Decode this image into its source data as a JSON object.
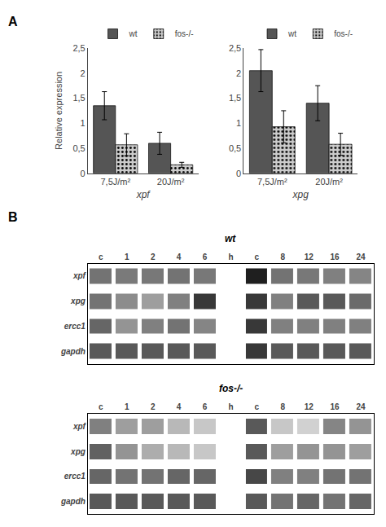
{
  "chart_data": [
    {
      "type": "bar",
      "annotations": [
        "A"
      ],
      "categories": [
        "7,5J/m²",
        "20J/m²"
      ],
      "xlabel": "xpf",
      "ylabel": "Relative expression",
      "series": [
        {
          "name": "wt",
          "color": "#555555",
          "values": [
            1.35,
            0.6
          ],
          "errors": [
            0.28,
            0.22
          ]
        },
        {
          "name": "fos-/-",
          "color": "#cccccc",
          "marker": "dots",
          "values": [
            0.57,
            0.17
          ],
          "errors": [
            0.22,
            0.05
          ]
        }
      ],
      "ylim": [
        0,
        2.5
      ],
      "yticks": [
        0,
        {
          "value": 0.5,
          "label": "0,5"
        },
        1,
        {
          "value": 1.5,
          "label": "1,5"
        },
        2,
        {
          "value": 2.5,
          "label": "2,5"
        }
      ],
      "grid": false,
      "legend": "upper right"
    },
    {
      "type": "bar",
      "categories": [
        "7,5J/m²",
        "20J/m²"
      ],
      "xlabel": "xpg",
      "series": [
        {
          "name": "wt",
          "color": "#555555",
          "values": [
            2.05,
            1.4
          ],
          "errors": [
            0.42,
            0.35
          ]
        },
        {
          "name": "fos-/-",
          "color": "#cccccc",
          "marker": "dots",
          "values": [
            0.93,
            0.58
          ],
          "errors": [
            0.32,
            0.22
          ]
        }
      ],
      "ylim": [
        0,
        2.5
      ],
      "yticks": [
        0,
        {
          "value": 0.5,
          "label": "0,5"
        },
        1,
        {
          "value": 1.5,
          "label": "1,5"
        },
        2,
        {
          "value": 2.5,
          "label": "2,5"
        }
      ],
      "grid": false,
      "legend": "upper right"
    },
    {
      "type": "heatmap",
      "annotations": [
        "B"
      ],
      "title": "wt",
      "x": [
        "c",
        "1",
        "2",
        "4",
        "6",
        "h",
        "c",
        "8",
        "12",
        "16",
        "24"
      ],
      "y": [
        "xpf",
        "xpg",
        "ercc1",
        "gapdh"
      ],
      "cells": [
        [
          0.55,
          0.52,
          0.53,
          0.55,
          0.53,
          null,
          0.88,
          0.55,
          0.53,
          0.5,
          0.48
        ],
        [
          0.55,
          0.45,
          0.38,
          0.5,
          0.78,
          null,
          0.78,
          0.5,
          0.65,
          0.65,
          0.58
        ],
        [
          0.6,
          0.42,
          0.5,
          0.55,
          0.48,
          null,
          0.78,
          0.5,
          0.5,
          0.5,
          0.5
        ],
        [
          0.65,
          0.65,
          0.65,
          0.65,
          0.65,
          null,
          0.78,
          0.65,
          0.65,
          0.65,
          0.65
        ]
      ],
      "zlim": [
        0,
        1
      ]
    },
    {
      "type": "heatmap",
      "title": "fos-/-",
      "x": [
        "c",
        "1",
        "2",
        "4",
        "6",
        "h",
        "c",
        "8",
        "12",
        "16",
        "24"
      ],
      "y": [
        "xpf",
        "xpg",
        "ercc1",
        "gapdh"
      ],
      "cells": [
        [
          0.5,
          0.38,
          0.38,
          0.28,
          0.22,
          null,
          0.65,
          0.22,
          0.18,
          0.48,
          0.42
        ],
        [
          0.62,
          0.42,
          0.32,
          0.28,
          0.22,
          null,
          0.65,
          0.38,
          0.42,
          0.42,
          0.38
        ],
        [
          0.6,
          0.55,
          0.55,
          0.6,
          0.6,
          null,
          0.72,
          0.5,
          0.5,
          0.55,
          0.55
        ],
        [
          0.65,
          0.65,
          0.65,
          0.65,
          0.65,
          null,
          0.65,
          0.55,
          0.6,
          0.55,
          0.6
        ]
      ],
      "zlim": [
        0,
        1
      ]
    }
  ]
}
